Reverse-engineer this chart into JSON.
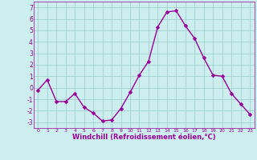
{
  "x": [
    0,
    1,
    2,
    3,
    4,
    5,
    6,
    7,
    8,
    9,
    10,
    11,
    12,
    13,
    14,
    15,
    16,
    17,
    18,
    19,
    20,
    21,
    22,
    23
  ],
  "y": [
    -0.2,
    0.7,
    -1.2,
    -1.2,
    -0.5,
    -1.7,
    -2.2,
    -2.9,
    -2.8,
    -1.8,
    -0.4,
    1.1,
    2.3,
    5.3,
    6.6,
    6.7,
    5.4,
    4.3,
    2.6,
    1.1,
    1.0,
    -0.5,
    -1.4,
    -2.3
  ],
  "line_color": "#990099",
  "marker_color": "#990099",
  "bg_color": "#cceeee",
  "grid_color": "#99cccc",
  "xlabel": "Windchill (Refroidissement éolien,°C)",
  "xlim": [
    -0.5,
    23.5
  ],
  "ylim": [
    -3.5,
    7.5
  ],
  "yticks": [
    -3,
    -2,
    -1,
    0,
    1,
    2,
    3,
    4,
    5,
    6,
    7
  ],
  "xticks": [
    0,
    1,
    2,
    3,
    4,
    5,
    6,
    7,
    8,
    9,
    10,
    11,
    12,
    13,
    14,
    15,
    16,
    17,
    18,
    19,
    20,
    21,
    22,
    23
  ],
  "xlabel_color": "#990099",
  "tick_color": "#990099",
  "axis_color": "#990099",
  "marker_size": 2.5,
  "line_width": 1.0
}
